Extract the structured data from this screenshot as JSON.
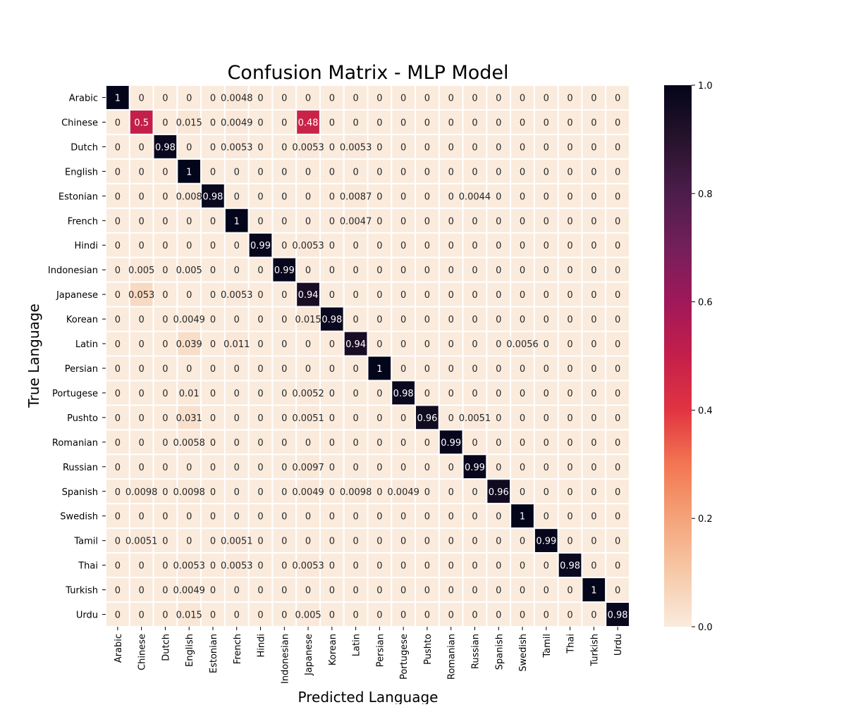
{
  "chart_data": {
    "type": "heatmap",
    "title": "Confusion Matrix - MLP Model",
    "xlabel": "Predicted Language",
    "ylabel": "True Language",
    "labels": [
      "Arabic",
      "Chinese",
      "Dutch",
      "English",
      "Estonian",
      "French",
      "Hindi",
      "Indonesian",
      "Japanese",
      "Korean",
      "Latin",
      "Persian",
      "Portugese",
      "Pushto",
      "Romanian",
      "Russian",
      "Spanish",
      "Swedish",
      "Tamil",
      "Thai",
      "Turkish",
      "Urdu"
    ],
    "matrix": [
      [
        "1",
        "0",
        "0",
        "0",
        "0",
        "0.0048",
        "0",
        "0",
        "0",
        "0",
        "0",
        "0",
        "0",
        "0",
        "0",
        "0",
        "0",
        "0",
        "0",
        "0",
        "0",
        "0"
      ],
      [
        "0",
        "0.5",
        "0",
        "0.015",
        "0",
        "0.0049",
        "0",
        "0",
        "0.48",
        "0",
        "0",
        "0",
        "0",
        "0",
        "0",
        "0",
        "0",
        "0",
        "0",
        "0",
        "0",
        "0"
      ],
      [
        "0",
        "0",
        "0.98",
        "0",
        "0",
        "0.0053",
        "0",
        "0",
        "0.0053",
        "0",
        "0.0053",
        "0",
        "0",
        "0",
        "0",
        "0",
        "0",
        "0",
        "0",
        "0",
        "0",
        "0"
      ],
      [
        "0",
        "0",
        "0",
        "1",
        "0",
        "0",
        "0",
        "0",
        "0",
        "0",
        "0",
        "0",
        "0",
        "0",
        "0",
        "0",
        "0",
        "0",
        "0",
        "0",
        "0",
        "0"
      ],
      [
        "0",
        "0",
        "0",
        "0.008",
        "0.98",
        "0",
        "0",
        "0",
        "0",
        "0",
        "0.0087",
        "0",
        "0",
        "0",
        "0",
        "0.0044",
        "0",
        "0",
        "0",
        "0",
        "0",
        "0"
      ],
      [
        "0",
        "0",
        "0",
        "0",
        "0",
        "1",
        "0",
        "0",
        "0",
        "0",
        "0.0047",
        "0",
        "0",
        "0",
        "0",
        "0",
        "0",
        "0",
        "0",
        "0",
        "0",
        "0"
      ],
      [
        "0",
        "0",
        "0",
        "0",
        "0",
        "0",
        "0.99",
        "0",
        "0.0053",
        "0",
        "0",
        "0",
        "0",
        "0",
        "0",
        "0",
        "0",
        "0",
        "0",
        "0",
        "0",
        "0"
      ],
      [
        "0",
        "0.005",
        "0",
        "0.005",
        "0",
        "0",
        "0",
        "0.99",
        "0",
        "0",
        "0",
        "0",
        "0",
        "0",
        "0",
        "0",
        "0",
        "0",
        "0",
        "0",
        "0",
        "0"
      ],
      [
        "0",
        "0.053",
        "0",
        "0",
        "0",
        "0.0053",
        "0",
        "0",
        "0.94",
        "0",
        "0",
        "0",
        "0",
        "0",
        "0",
        "0",
        "0",
        "0",
        "0",
        "0",
        "0",
        "0"
      ],
      [
        "0",
        "0",
        "0",
        "0.0049",
        "0",
        "0",
        "0",
        "0",
        "0.015",
        "0.98",
        "0",
        "0",
        "0",
        "0",
        "0",
        "0",
        "0",
        "0",
        "0",
        "0",
        "0",
        "0"
      ],
      [
        "0",
        "0",
        "0",
        "0.039",
        "0",
        "0.011",
        "0",
        "0",
        "0",
        "0",
        "0.94",
        "0",
        "0",
        "0",
        "0",
        "0",
        "0",
        "0.0056",
        "0",
        "0",
        "0",
        "0"
      ],
      [
        "0",
        "0",
        "0",
        "0",
        "0",
        "0",
        "0",
        "0",
        "0",
        "0",
        "0",
        "1",
        "0",
        "0",
        "0",
        "0",
        "0",
        "0",
        "0",
        "0",
        "0",
        "0"
      ],
      [
        "0",
        "0",
        "0",
        "0.01",
        "0",
        "0",
        "0",
        "0",
        "0.0052",
        "0",
        "0",
        "0",
        "0.98",
        "0",
        "0",
        "0",
        "0",
        "0",
        "0",
        "0",
        "0",
        "0"
      ],
      [
        "0",
        "0",
        "0",
        "0.031",
        "0",
        "0",
        "0",
        "0",
        "0.0051",
        "0",
        "0",
        "0",
        "0",
        "0.96",
        "0",
        "0.0051",
        "0",
        "0",
        "0",
        "0",
        "0",
        "0"
      ],
      [
        "0",
        "0",
        "0",
        "0.0058",
        "0",
        "0",
        "0",
        "0",
        "0",
        "0",
        "0",
        "0",
        "0",
        "0",
        "0.99",
        "0",
        "0",
        "0",
        "0",
        "0",
        "0",
        "0"
      ],
      [
        "0",
        "0",
        "0",
        "0",
        "0",
        "0",
        "0",
        "0",
        "0.0097",
        "0",
        "0",
        "0",
        "0",
        "0",
        "0",
        "0.99",
        "0",
        "0",
        "0",
        "0",
        "0",
        "0"
      ],
      [
        "0",
        "0.0098",
        "0",
        "0.0098",
        "0",
        "0",
        "0",
        "0",
        "0.0049",
        "0",
        "0.0098",
        "0",
        "0.0049",
        "0",
        "0",
        "0",
        "0.96",
        "0",
        "0",
        "0",
        "0",
        "0"
      ],
      [
        "0",
        "0",
        "0",
        "0",
        "0",
        "0",
        "0",
        "0",
        "0",
        "0",
        "0",
        "0",
        "0",
        "0",
        "0",
        "0",
        "0",
        "1",
        "0",
        "0",
        "0",
        "0"
      ],
      [
        "0",
        "0.0051",
        "0",
        "0",
        "0",
        "0.0051",
        "0",
        "0",
        "0",
        "0",
        "0",
        "0",
        "0",
        "0",
        "0",
        "0",
        "0",
        "0",
        "0.99",
        "0",
        "0",
        "0"
      ],
      [
        "0",
        "0",
        "0",
        "0.0053",
        "0",
        "0.0053",
        "0",
        "0",
        "0.0053",
        "0",
        "0",
        "0",
        "0",
        "0",
        "0",
        "0",
        "0",
        "0",
        "0",
        "0.98",
        "0",
        "0"
      ],
      [
        "0",
        "0",
        "0",
        "0.0049",
        "0",
        "0",
        "0",
        "0",
        "0",
        "0",
        "0",
        "0",
        "0",
        "0",
        "0",
        "0",
        "0",
        "0",
        "0",
        "0",
        "1",
        "0"
      ],
      [
        "0",
        "0",
        "0",
        "0.015",
        "0",
        "0",
        "0",
        "0",
        "0.005",
        "0",
        "0",
        "0",
        "0",
        "0",
        "0",
        "0",
        "0",
        "0",
        "0",
        "0",
        "0",
        "0.98"
      ]
    ],
    "value_range": [
      0,
      1
    ],
    "colorbar": {
      "ticks": [
        "0.0",
        "0.2",
        "0.4",
        "0.6",
        "0.8",
        "1.0"
      ],
      "colormap": "rocket_r"
    },
    "annot_color_dark": "#ffffff",
    "annot_color_light": "#262626",
    "grid_color": "#ffffff"
  }
}
